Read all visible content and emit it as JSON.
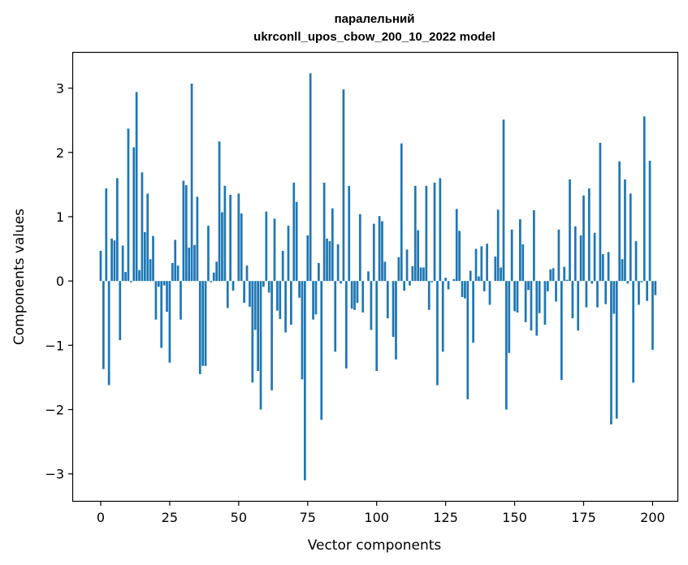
{
  "chart_data": {
    "type": "bar",
    "title_lines": [
      "паралельний",
      "ukrconll_upos_cbow_200_10_2022 model"
    ],
    "xlabel": "Vector components",
    "ylabel": "Components values",
    "xlim": [
      -10,
      209
    ],
    "ylim": [
      -3.42,
      3.55
    ],
    "xticks": [
      0,
      25,
      50,
      75,
      100,
      125,
      150,
      175,
      200
    ],
    "yticks": [
      -3,
      -2,
      -1,
      0,
      1,
      2,
      3
    ],
    "bar_color": "#1f77b4",
    "bar_width": 0.8,
    "values": [
      0.47,
      -1.37,
      1.44,
      -1.62,
      0.66,
      0.63,
      1.6,
      -0.92,
      0.55,
      0.14,
      2.37,
      -0.02,
      2.08,
      2.94,
      0.17,
      1.69,
      0.76,
      1.36,
      0.34,
      0.7,
      -0.6,
      -0.09,
      -1.04,
      -0.07,
      -0.48,
      -1.27,
      0.28,
      0.64,
      0.24,
      -0.6,
      1.56,
      1.49,
      0.52,
      3.07,
      0.56,
      1.31,
      -1.45,
      -1.32,
      -1.32,
      0.86,
      -0.02,
      0.13,
      0.3,
      2.17,
      1.07,
      1.48,
      -0.42,
      1.34,
      -0.15,
      0.0,
      1.36,
      1.05,
      -0.34,
      0.24,
      -0.4,
      -1.58,
      -0.76,
      -1.4,
      -2.0,
      -0.09,
      1.08,
      -0.18,
      -1.7,
      0.97,
      -0.46,
      -0.59,
      0.47,
      -0.8,
      0.86,
      -0.68,
      1.53,
      1.23,
      -0.26,
      -1.53,
      -3.1,
      0.71,
      3.23,
      -0.6,
      -0.52,
      0.28,
      -2.16,
      1.53,
      0.66,
      0.62,
      1.13,
      -1.1,
      0.57,
      -0.04,
      2.98,
      -1.36,
      1.48,
      -0.43,
      -0.45,
      -0.34,
      1.04,
      -0.49,
      0.0,
      0.15,
      -0.76,
      0.89,
      -1.4,
      1.01,
      0.93,
      0.3,
      -0.58,
      0.0,
      -0.87,
      -1.22,
      0.37,
      2.14,
      -0.15,
      0.49,
      -0.07,
      0.23,
      1.48,
      0.79,
      0.21,
      0.21,
      1.48,
      -0.45,
      -0.02,
      1.53,
      -1.62,
      1.6,
      -1.1,
      0.05,
      -0.13,
      0.0,
      0.03,
      1.12,
      0.78,
      -0.25,
      -0.27,
      -1.84,
      0.16,
      -0.96,
      0.5,
      0.07,
      0.54,
      -0.16,
      0.58,
      -0.37,
      0.0,
      0.38,
      1.11,
      0.21,
      2.51,
      -2.0,
      -1.12,
      0.8,
      -0.47,
      -0.49,
      0.96,
      0.57,
      -0.64,
      -0.14,
      -0.77,
      1.1,
      -0.85,
      -0.5,
      0.0,
      -0.68,
      -0.16,
      0.18,
      0.2,
      -0.32,
      0.8,
      -1.54,
      0.22,
      0.02,
      1.58,
      -0.58,
      0.85,
      -0.77,
      0.71,
      1.33,
      -0.41,
      1.44,
      -0.04,
      0.75,
      -0.41,
      2.15,
      0.42,
      -0.36,
      0.45,
      -2.23,
      -0.51,
      -2.14,
      1.86,
      0.34,
      1.58,
      -0.04,
      1.36,
      -1.58,
      0.62,
      -0.37,
      -0.02,
      2.56,
      -0.31,
      1.87,
      -1.07,
      -0.22
    ]
  }
}
